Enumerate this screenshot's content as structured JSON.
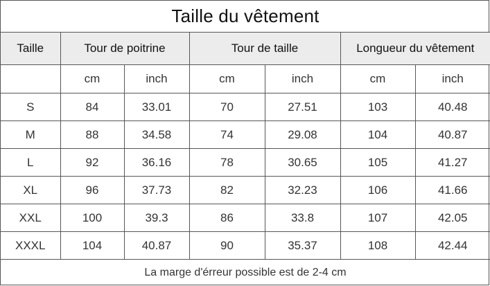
{
  "title": "Taille du vêtement",
  "headers": {
    "size": "Taille",
    "chest": "Tour de poitrine",
    "waist": "Tour de taille",
    "length": "Longueur du vêtement"
  },
  "units": {
    "cm": "cm",
    "inch": "inch"
  },
  "rows": [
    {
      "size": "S",
      "chest_cm": "84",
      "chest_in": "33.01",
      "waist_cm": "70",
      "waist_in": "27.51",
      "length_cm": "103",
      "length_in": "40.48"
    },
    {
      "size": "M",
      "chest_cm": "88",
      "chest_in": "34.58",
      "waist_cm": "74",
      "waist_in": "29.08",
      "length_cm": "104",
      "length_in": "40.87"
    },
    {
      "size": "L",
      "chest_cm": "92",
      "chest_in": "36.16",
      "waist_cm": "78",
      "waist_in": "30.65",
      "length_cm": "105",
      "length_in": "41.27"
    },
    {
      "size": "XL",
      "chest_cm": "96",
      "chest_in": "37.73",
      "waist_cm": "82",
      "waist_in": "32.23",
      "length_cm": "106",
      "length_in": "41.66"
    },
    {
      "size": "XXL",
      "chest_cm": "100",
      "chest_in": "39.3",
      "waist_cm": "86",
      "waist_in": "33.8",
      "length_cm": "107",
      "length_in": "42.05"
    },
    {
      "size": "XXXL",
      "chest_cm": "104",
      "chest_in": "40.87",
      "waist_cm": "90",
      "waist_in": "35.37",
      "length_cm": "108",
      "length_in": "42.44"
    }
  ],
  "note": "La marge d'érreur possible est de 2-4 cm",
  "colors": {
    "header_bg": "#ececec",
    "border": "#555555",
    "text": "#333333"
  }
}
